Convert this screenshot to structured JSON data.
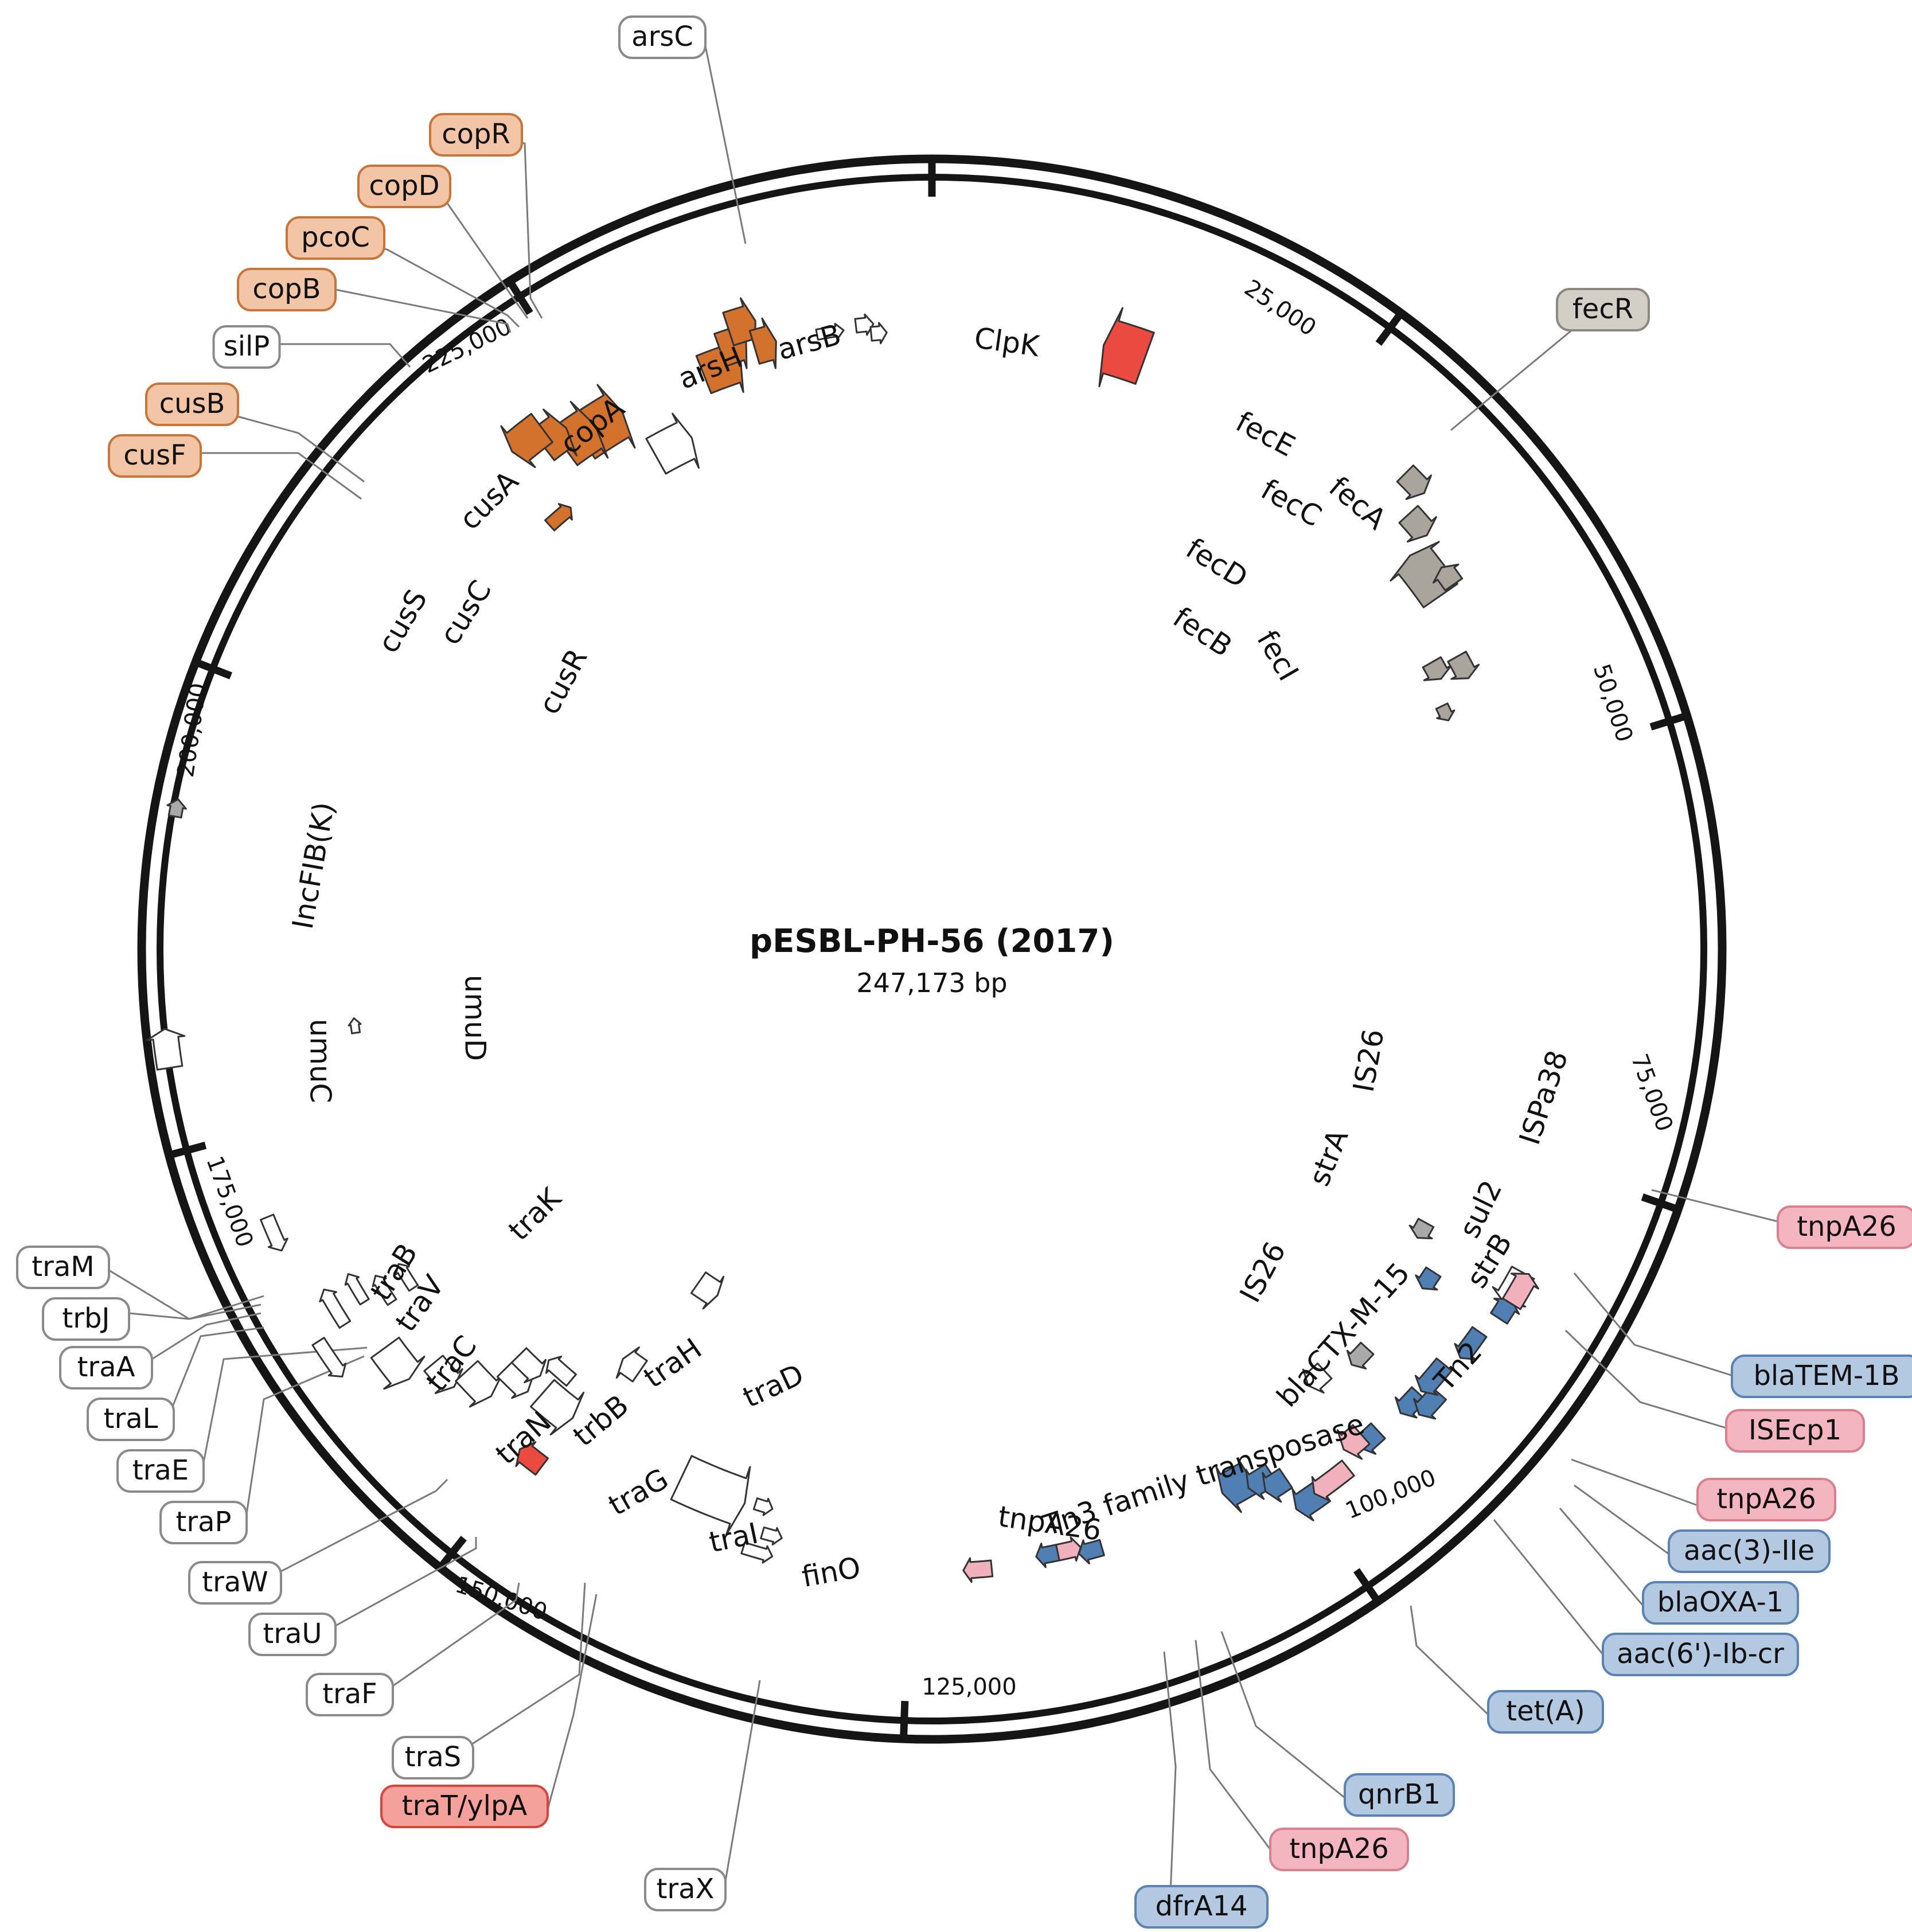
{
  "plasmid": {
    "name": "pESBL-PH-56 (2017)",
    "length_label": "247,173 bp",
    "length_bp": 247173
  },
  "colors": {
    "cus_cop": "#d2722c",
    "cus_cop_box": "#f2c5a6",
    "fec": "#aaa59c",
    "fec_box": "#d2cfc7",
    "resistance": "#4f7fb3",
    "resistance_box": "#b3c8e1",
    "mobile": "#f1b1bc",
    "mobile_box": "#f3b6c1",
    "virulence": "#ea4a40",
    "virulence_box": "#f4a09b",
    "neutral": "#ffffff",
    "rep": "#a9a9a9"
  },
  "ticks": [
    {
      "pos": 0,
      "label": ""
    },
    {
      "pos": 25000,
      "label": "25,000"
    },
    {
      "pos": 50000,
      "label": "50,000"
    },
    {
      "pos": 75000,
      "label": "75,000"
    },
    {
      "pos": 100000,
      "label": "100,000"
    },
    {
      "pos": 125000,
      "label": "125,000"
    },
    {
      "pos": 150000,
      "label": "150,000"
    },
    {
      "pos": 175000,
      "label": "175,000"
    },
    {
      "pos": 200000,
      "label": "200,000"
    },
    {
      "pos": 225000,
      "label": "225,000"
    }
  ],
  "inner_labels": [
    {
      "text": "ClpK"
    },
    {
      "text": "arsH"
    },
    {
      "text": "arsB"
    },
    {
      "text": "copA"
    },
    {
      "text": "cusA"
    },
    {
      "text": "cusC"
    },
    {
      "text": "cusS"
    },
    {
      "text": "cusR"
    },
    {
      "text": "fecE"
    },
    {
      "text": "fecC"
    },
    {
      "text": "fecA"
    },
    {
      "text": "fecD"
    },
    {
      "text": "fecB"
    },
    {
      "text": "fecI"
    },
    {
      "text": "IncFIB(K)"
    },
    {
      "text": "umuC"
    },
    {
      "text": "umuD"
    },
    {
      "text": "traK"
    },
    {
      "text": "traB"
    },
    {
      "text": "traV"
    },
    {
      "text": "traC"
    },
    {
      "text": "traH"
    },
    {
      "text": "traD"
    },
    {
      "text": "traN"
    },
    {
      "text": "trbB"
    },
    {
      "text": "traG"
    },
    {
      "text": "traI"
    },
    {
      "text": "finO"
    },
    {
      "text": "tnpA26"
    },
    {
      "text": "Tn3 family transposase"
    },
    {
      "text": "IS26"
    },
    {
      "text": "ISPa38"
    },
    {
      "text": "strA"
    },
    {
      "text": "sul2"
    },
    {
      "text": "IS26"
    },
    {
      "text": "strB"
    },
    {
      "text": "blaCTX-M-15"
    },
    {
      "text": "Tn2"
    }
  ],
  "callouts": [
    {
      "text": "arsC",
      "cat": "neutral"
    },
    {
      "text": "copR",
      "cat": "cus_cop"
    },
    {
      "text": "copD",
      "cat": "cus_cop"
    },
    {
      "text": "pcoC",
      "cat": "cus_cop"
    },
    {
      "text": "copB",
      "cat": "cus_cop"
    },
    {
      "text": "silP",
      "cat": "neutral"
    },
    {
      "text": "cusB",
      "cat": "cus_cop"
    },
    {
      "text": "cusF",
      "cat": "cus_cop"
    },
    {
      "text": "fecR",
      "cat": "fec"
    },
    {
      "text": "tnpA26",
      "cat": "mobile"
    },
    {
      "text": "blaTEM-1B",
      "cat": "resistance"
    },
    {
      "text": "ISEcp1",
      "cat": "mobile"
    },
    {
      "text": "tnpA26",
      "cat": "mobile"
    },
    {
      "text": "aac(3)-IIe",
      "cat": "resistance"
    },
    {
      "text": "blaOXA-1",
      "cat": "resistance"
    },
    {
      "text": "aac(6')-Ib-cr",
      "cat": "resistance"
    },
    {
      "text": "tet(A)",
      "cat": "resistance"
    },
    {
      "text": "qnrB1",
      "cat": "resistance"
    },
    {
      "text": "tnpA26",
      "cat": "mobile"
    },
    {
      "text": "dfrA14",
      "cat": "resistance"
    },
    {
      "text": "traX",
      "cat": "neutral"
    },
    {
      "text": "traT/ylpA",
      "cat": "virulence"
    },
    {
      "text": "traS",
      "cat": "neutral"
    },
    {
      "text": "traF",
      "cat": "neutral"
    },
    {
      "text": "traU",
      "cat": "neutral"
    },
    {
      "text": "traW",
      "cat": "neutral"
    },
    {
      "text": "traP",
      "cat": "neutral"
    },
    {
      "text": "traE",
      "cat": "neutral"
    },
    {
      "text": "traL",
      "cat": "neutral"
    },
    {
      "text": "traA",
      "cat": "neutral"
    },
    {
      "text": "trbJ",
      "cat": "neutral"
    },
    {
      "text": "traM",
      "cat": "neutral"
    }
  ]
}
